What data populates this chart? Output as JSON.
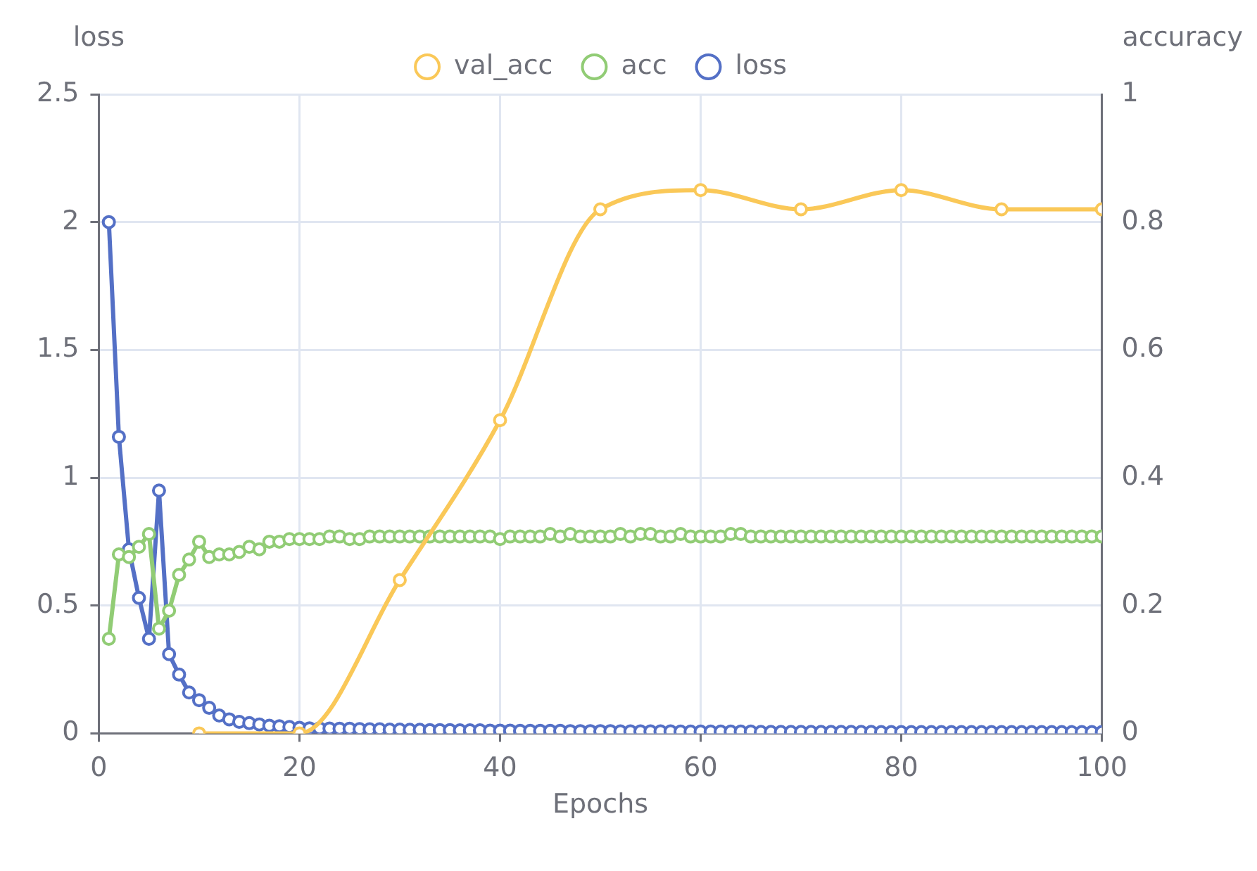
{
  "chart_data": {
    "type": "line",
    "xlabel": "Epochs",
    "ylabel": "loss",
    "y2label": "accuracy",
    "x": [
      1,
      2,
      3,
      4,
      5,
      6,
      7,
      8,
      9,
      10,
      11,
      12,
      13,
      14,
      15,
      16,
      17,
      18,
      19,
      20,
      21,
      22,
      23,
      24,
      25,
      26,
      27,
      28,
      29,
      30,
      31,
      32,
      33,
      34,
      35,
      36,
      37,
      38,
      39,
      40,
      41,
      42,
      43,
      44,
      45,
      46,
      47,
      48,
      49,
      50,
      51,
      52,
      53,
      54,
      55,
      56,
      57,
      58,
      59,
      60,
      61,
      62,
      63,
      64,
      65,
      66,
      67,
      68,
      69,
      70,
      71,
      72,
      73,
      74,
      75,
      76,
      77,
      78,
      79,
      80,
      81,
      82,
      83,
      84,
      85,
      86,
      87,
      88,
      89,
      90,
      91,
      92,
      93,
      94,
      95,
      96,
      97,
      98,
      99,
      100
    ],
    "series": [
      {
        "name": "loss",
        "color": "#5470c6",
        "axis": "y",
        "values": [
          2.0,
          1.16,
          0.72,
          0.53,
          0.37,
          0.95,
          0.31,
          0.23,
          0.16,
          0.13,
          0.1,
          0.07,
          0.055,
          0.045,
          0.04,
          0.035,
          0.03,
          0.028,
          0.025,
          0.022,
          0.02,
          0.02,
          0.019,
          0.018,
          0.018,
          0.017,
          0.016,
          0.016,
          0.015,
          0.015,
          0.014,
          0.014,
          0.013,
          0.013,
          0.013,
          0.012,
          0.012,
          0.012,
          0.011,
          0.011,
          0.011,
          0.01,
          0.01,
          0.01,
          0.01,
          0.01,
          0.009,
          0.009,
          0.009,
          0.009,
          0.009,
          0.008,
          0.008,
          0.008,
          0.008,
          0.008,
          0.008,
          0.007,
          0.007,
          0.007,
          0.007,
          0.007,
          0.007,
          0.007,
          0.007,
          0.006,
          0.006,
          0.006,
          0.006,
          0.006,
          0.006,
          0.006,
          0.006,
          0.006,
          0.006,
          0.006,
          0.006,
          0.005,
          0.005,
          0.005,
          0.005,
          0.005,
          0.005,
          0.005,
          0.005,
          0.005,
          0.005,
          0.005,
          0.005,
          0.005,
          0.005,
          0.005,
          0.005,
          0.005,
          0.005,
          0.005,
          0.005,
          0.005,
          0.005,
          0.005
        ]
      },
      {
        "name": "acc",
        "color": "#91cc75",
        "axis": "y",
        "values": [
          0.37,
          0.7,
          0.69,
          0.73,
          0.78,
          0.41,
          0.48,
          0.62,
          0.68,
          0.75,
          0.69,
          0.7,
          0.7,
          0.71,
          0.73,
          0.72,
          0.75,
          0.75,
          0.76,
          0.76,
          0.76,
          0.76,
          0.77,
          0.77,
          0.76,
          0.76,
          0.77,
          0.77,
          0.77,
          0.77,
          0.77,
          0.77,
          0.77,
          0.77,
          0.77,
          0.77,
          0.77,
          0.77,
          0.77,
          0.76,
          0.77,
          0.77,
          0.77,
          0.77,
          0.78,
          0.77,
          0.78,
          0.77,
          0.77,
          0.77,
          0.77,
          0.78,
          0.77,
          0.78,
          0.78,
          0.77,
          0.77,
          0.78,
          0.77,
          0.77,
          0.77,
          0.77,
          0.78,
          0.78,
          0.77,
          0.77,
          0.77,
          0.77,
          0.77,
          0.77,
          0.77,
          0.77,
          0.77,
          0.77,
          0.77,
          0.77,
          0.77,
          0.77,
          0.77,
          0.77,
          0.77,
          0.77,
          0.77,
          0.77,
          0.77,
          0.77,
          0.77,
          0.77,
          0.77,
          0.77,
          0.77,
          0.77,
          0.77,
          0.77,
          0.77,
          0.77,
          0.77,
          0.77,
          0.77,
          0.77
        ]
      },
      {
        "name": "val_acc",
        "color": "#fac858",
        "axis": "y2",
        "x": [
          10,
          20,
          30,
          40,
          50,
          60,
          70,
          80,
          90,
          100
        ],
        "values": [
          0,
          0,
          0.24,
          0.49,
          0.82,
          0.85,
          0.82,
          0.85,
          0.82,
          0.82
        ]
      }
    ],
    "xlim": [
      0,
      100
    ],
    "xticks": [
      0,
      20,
      40,
      60,
      80,
      100
    ],
    "ylim": [
      0,
      2.5
    ],
    "yticks": [
      0,
      0.5,
      1,
      1.5,
      2,
      2.5
    ],
    "y2lim": [
      0,
      1
    ],
    "y2ticks": [
      0,
      0.2,
      0.4,
      0.6,
      0.8,
      1
    ],
    "grid": true,
    "legend": "top",
    "marker": "circle",
    "line_style": "solid"
  }
}
